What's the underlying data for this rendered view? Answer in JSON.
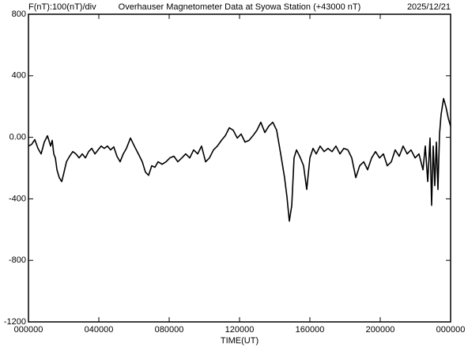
{
  "chart_data": {
    "type": "line",
    "title": "Overhauser Magnetometer Data at Syowa Station (+43000 nT)",
    "subtitle": "F(nT):100(nT)/div",
    "date": "2025/12/21",
    "x_label": "TIME(UT)",
    "xlim": [
      0,
      24
    ],
    "xticks": [
      {
        "value": 0,
        "label": "000000"
      },
      {
        "value": 4,
        "label": "040000"
      },
      {
        "value": 8,
        "label": "080000"
      },
      {
        "value": 12,
        "label": "120000"
      },
      {
        "value": 16,
        "label": "160000"
      },
      {
        "value": 20,
        "label": "200000"
      },
      {
        "value": 24,
        "label": "000000"
      }
    ],
    "ylim": [
      -1200,
      800
    ],
    "yticks": [
      -1200,
      -800,
      -400,
      {
        "value": 0,
        "label": "0.00"
      },
      400,
      800
    ],
    "grid": false,
    "x": [
      0,
      0.18,
      0.36,
      0.54,
      0.72,
      0.9,
      1.08,
      1.26,
      1.35,
      1.44,
      1.53,
      1.62,
      1.75,
      1.89,
      1.98,
      2.16,
      2.34,
      2.52,
      2.7,
      2.88,
      3.06,
      3.24,
      3.42,
      3.6,
      3.78,
      3.96,
      4.13,
      4.31,
      4.49,
      4.67,
      4.85,
      5.03,
      5.21,
      5.39,
      5.57,
      5.8,
      6.02,
      6.25,
      6.47,
      6.65,
      6.83,
      7.01,
      7.19,
      7.37,
      7.6,
      7.82,
      8.04,
      8.27,
      8.49,
      8.72,
      8.94,
      9.17,
      9.39,
      9.62,
      9.84,
      10.07,
      10.29,
      10.52,
      10.74,
      10.97,
      11.19,
      11.42,
      11.64,
      11.87,
      12.09,
      12.31,
      12.54,
      12.76,
      12.99,
      13.21,
      13.44,
      13.66,
      13.89,
      14.11,
      14.34,
      14.56,
      14.7,
      14.83,
      14.97,
      15.1,
      15.24,
      15.46,
      15.64,
      15.82,
      16,
      16.18,
      16.36,
      16.58,
      16.81,
      17.03,
      17.26,
      17.48,
      17.71,
      17.93,
      18.16,
      18.38,
      18.61,
      18.83,
      19.06,
      19.28,
      19.51,
      19.73,
      19.96,
      20.18,
      20.4,
      20.63,
      20.85,
      21.08,
      21.3,
      21.53,
      21.75,
      21.98,
      22.2,
      22.43,
      22.56,
      22.7,
      22.83,
      22.92,
      23.01,
      23.1,
      23.19,
      23.28,
      23.37,
      23.46,
      23.6,
      23.73,
      23.87,
      24
    ],
    "series": [
      {
        "color": "#000000",
        "values": [
          -57,
          -46,
          -15,
          -72,
          -108,
          -31,
          10,
          -57,
          -20,
          -108,
          -134,
          -211,
          -262,
          -288,
          -247,
          -159,
          -123,
          -93,
          -108,
          -134,
          -108,
          -134,
          -93,
          -72,
          -108,
          -82,
          -57,
          -72,
          -57,
          -82,
          -62,
          -123,
          -159,
          -108,
          -72,
          -5,
          -57,
          -108,
          -159,
          -226,
          -247,
          -185,
          -195,
          -159,
          -175,
          -159,
          -134,
          -123,
          -159,
          -134,
          -108,
          -134,
          -82,
          -108,
          -57,
          -159,
          -134,
          -82,
          -57,
          -20,
          10,
          62,
          46,
          -5,
          21,
          -31,
          -20,
          10,
          46,
          98,
          31,
          72,
          98,
          46,
          -108,
          -262,
          -391,
          -545,
          -442,
          -134,
          -82,
          -134,
          -185,
          -339,
          -134,
          -72,
          -108,
          -57,
          -93,
          -72,
          -93,
          -57,
          -108,
          -72,
          -82,
          -134,
          -262,
          -185,
          -159,
          -211,
          -134,
          -93,
          -134,
          -108,
          -185,
          -159,
          -82,
          -123,
          -57,
          -108,
          -82,
          -134,
          -108,
          -211,
          -57,
          -288,
          -5,
          -442,
          -57,
          -314,
          -31,
          -339,
          21,
          149,
          252,
          200,
          123,
          72
        ]
      }
    ]
  }
}
